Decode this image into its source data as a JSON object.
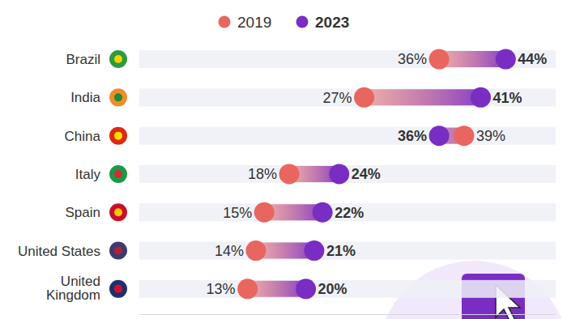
{
  "chart_data": {
    "type": "dumbbell",
    "orientation": "horizontal",
    "legend": "top",
    "data_labels": true,
    "tick_labels": false,
    "categories": [
      "Brazil",
      "India",
      "China",
      "Italy",
      "Spain",
      "United States",
      "United Kingdom"
    ],
    "xlim": [
      0,
      50
    ],
    "series": [
      {
        "name": "2019",
        "color": "#e8665f",
        "values": [
          36,
          27,
          39,
          18,
          15,
          14,
          13
        ],
        "value_labels": [
          "36%",
          "27%",
          "39%",
          "18%",
          "15%",
          "14%",
          "13%"
        ]
      },
      {
        "name": "2023",
        "color": "#7a2dc2",
        "values": [
          44,
          41,
          36,
          24,
          22,
          21,
          20
        ],
        "value_labels": [
          "44%",
          "41%",
          "36%",
          "24%",
          "22%",
          "21%",
          "20%"
        ]
      }
    ]
  }
}
